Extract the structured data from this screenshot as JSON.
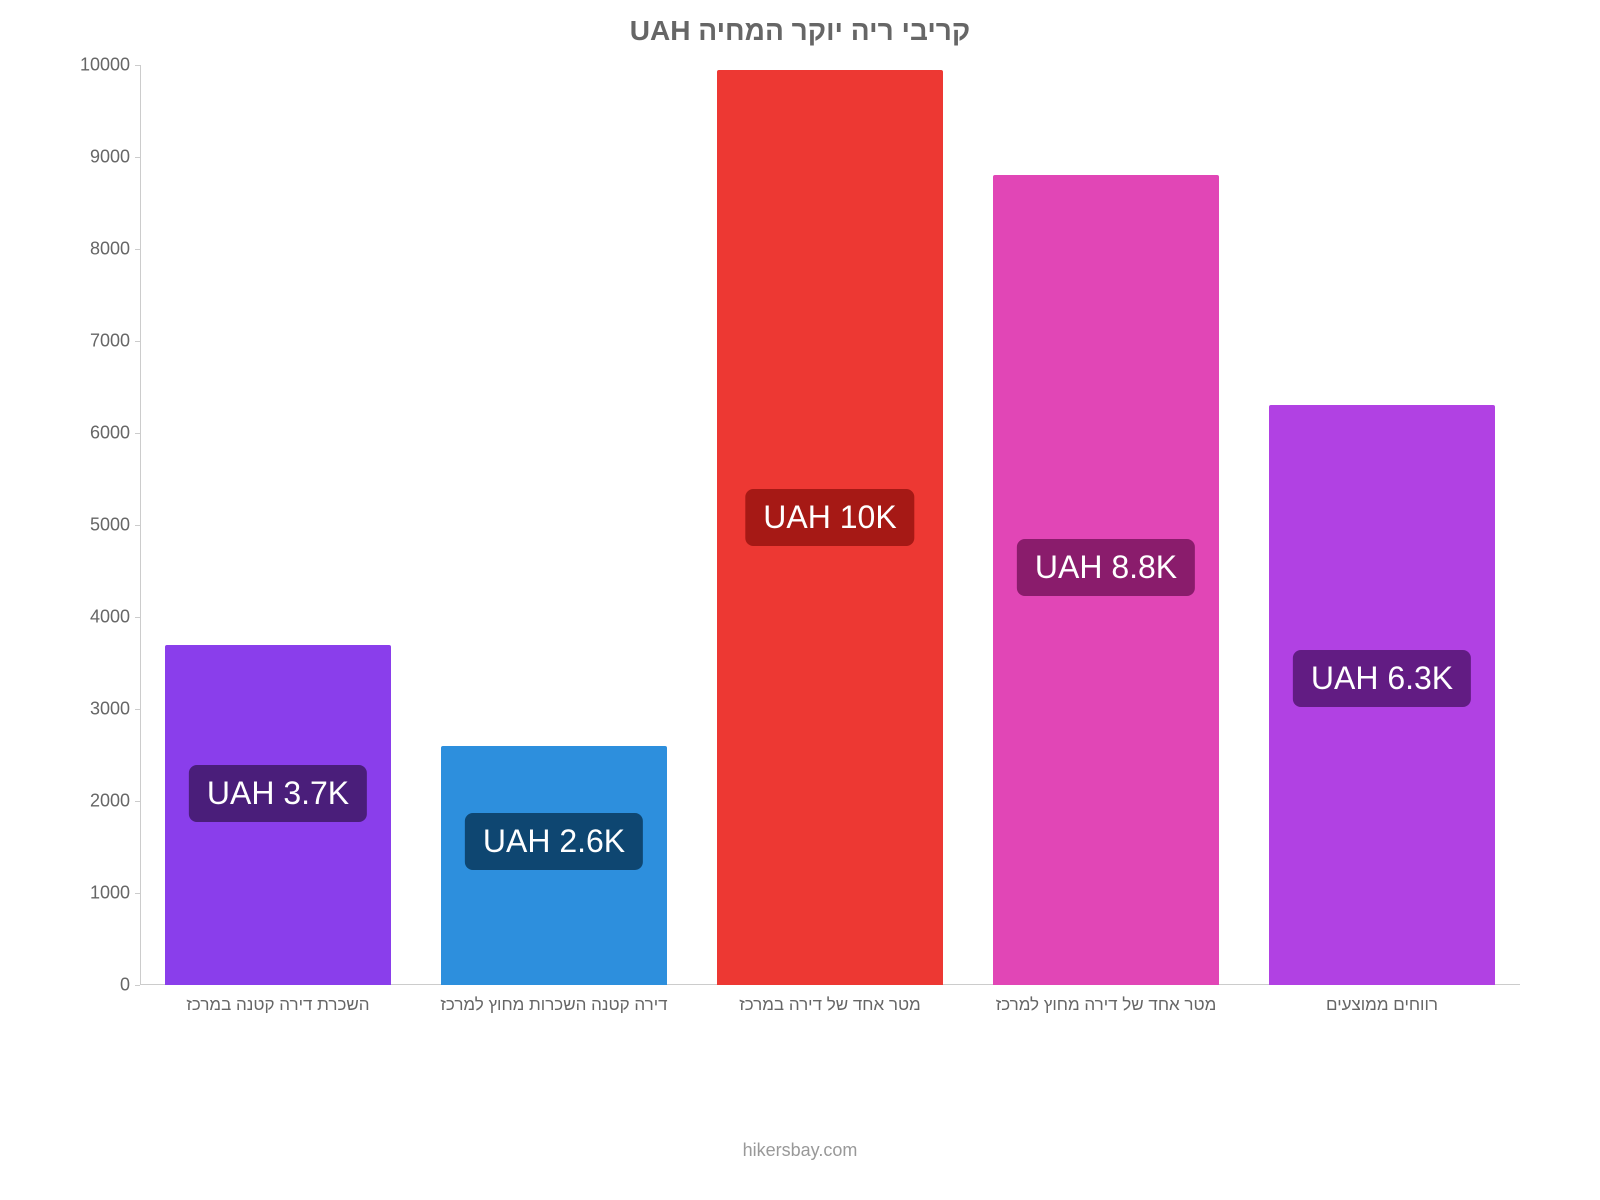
{
  "chart": {
    "type": "bar",
    "title": "קריבי ריה יוקר המחיה UAH",
    "title_color": "#666666",
    "title_fontsize": 28,
    "background_color": "#ffffff",
    "axis_line_color": "#cccccc",
    "y": {
      "min": 0,
      "max": 10000,
      "step": 1000,
      "ticks": [
        "0",
        "1000",
        "2000",
        "3000",
        "4000",
        "5000",
        "6000",
        "7000",
        "8000",
        "9000",
        "10000"
      ],
      "tick_color": "#666666",
      "tick_fontsize": 18
    },
    "x": {
      "tick_color": "#666666",
      "tick_fontsize": 17
    },
    "bars": [
      {
        "category": "השכרת דירה קטנה במרכז",
        "value": 3700,
        "color": "#8a3eeb",
        "label": "UAH 3.7K",
        "label_bg": "#4a1e7a"
      },
      {
        "category": "דירה קטנה השכרות מחוץ למרכז",
        "value": 2600,
        "color": "#2d8fdd",
        "label": "UAH 2.6K",
        "label_bg": "#0e4671"
      },
      {
        "category": "מטר אחד של דירה במרכז",
        "value": 9950,
        "color": "#ed3833",
        "label": "UAH 10K",
        "label_bg": "#a61915"
      },
      {
        "category": "מטר אחד של דירה מחוץ למרכז",
        "value": 8800,
        "color": "#e146b6",
        "label": "UAH 8.8K",
        "label_bg": "#8a1c6c"
      },
      {
        "category": "רווחים ממוצעים",
        "value": 6300,
        "color": "#b141e3",
        "label": "UAH 6.3K",
        "label_bg": "#621c83"
      }
    ],
    "bar_width_pct": 0.82,
    "footer": "hikersbay.com",
    "footer_color": "#999999",
    "footer_fontsize": 18
  }
}
